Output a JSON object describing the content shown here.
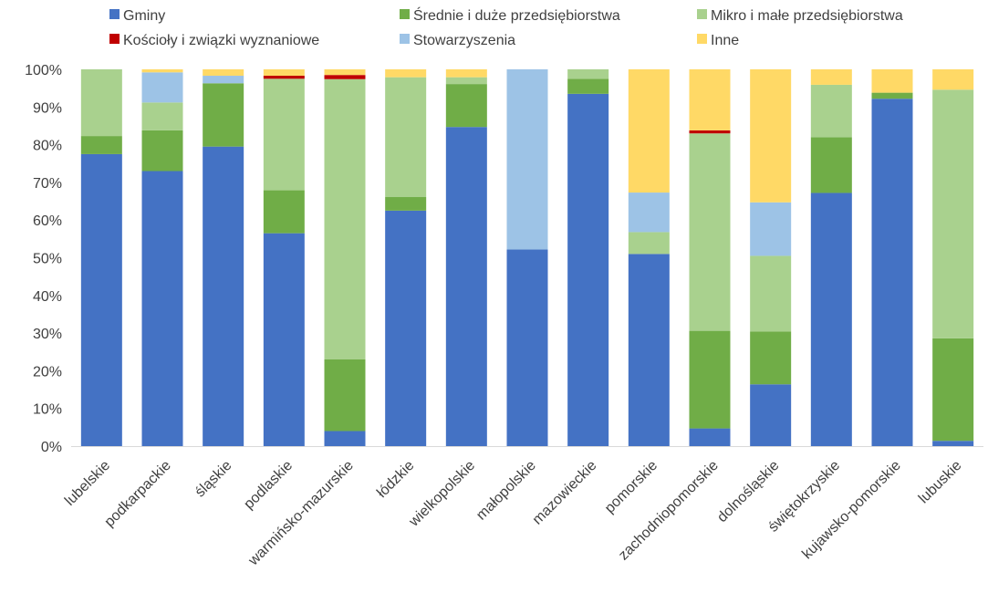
{
  "chart_data": {
    "type": "bar",
    "stacked": true,
    "y_format": "percent",
    "ylim": [
      0,
      100
    ],
    "yticks": [
      "0%",
      "10%",
      "20%",
      "30%",
      "40%",
      "50%",
      "60%",
      "70%",
      "80%",
      "90%",
      "100%"
    ],
    "grid": false,
    "legend_position": "top",
    "categories": [
      "lubelskie",
      "podkarpackie",
      "śląskie",
      "podlaskie",
      "warmińsko-mazurskie",
      "łódzkie",
      "wielkopolskie",
      "małopolskie",
      "mazowieckie",
      "pomorskie",
      "zachodniopomorskie",
      "dolnośląskie",
      "świętokrzyskie",
      "kujawsko-pomorskie",
      "lubuskie"
    ],
    "series": [
      {
        "name": "Gminy",
        "color": "#4472C4",
        "values": [
          77.5,
          73.0,
          79.5,
          56.5,
          4.0,
          62.5,
          84.7,
          52.2,
          93.5,
          51.0,
          4.7,
          16.4,
          67.2,
          92.2,
          1.4
        ]
      },
      {
        "name": "Średnie i duże przedsiębiorstwa",
        "color": "#70AD47",
        "values": [
          4.8,
          10.8,
          16.8,
          11.4,
          19.0,
          3.6,
          11.4,
          0.0,
          4.0,
          0.0,
          25.9,
          14.0,
          14.8,
          1.6,
          27.2
        ]
      },
      {
        "name": "Mikro i małe przedsiębiorstwa",
        "color": "#A9D18E",
        "values": [
          17.7,
          7.4,
          0.0,
          29.6,
          74.4,
          31.8,
          1.8,
          0.0,
          2.5,
          5.8,
          52.4,
          20.1,
          13.9,
          0.0,
          66.0
        ]
      },
      {
        "name": "Kościoły i związki wyznaniowe",
        "color": "#C00000",
        "values": [
          0.0,
          0.0,
          0.0,
          0.8,
          1.1,
          0.0,
          0.0,
          0.0,
          0.0,
          0.0,
          0.8,
          0.0,
          0.0,
          0.0,
          0.0
        ]
      },
      {
        "name": "Stowarzyszenia",
        "color": "#9DC3E6",
        "values": [
          0.0,
          8.0,
          2.0,
          0.0,
          0.0,
          0.0,
          0.0,
          47.8,
          0.0,
          10.5,
          0.0,
          14.2,
          0.0,
          0.0,
          0.0
        ]
      },
      {
        "name": "Inne",
        "color": "#FFD966",
        "values": [
          0.0,
          0.8,
          1.7,
          1.7,
          1.5,
          2.1,
          2.1,
          0.0,
          0.0,
          32.7,
          16.2,
          35.3,
          4.1,
          6.2,
          5.4
        ]
      }
    ]
  }
}
